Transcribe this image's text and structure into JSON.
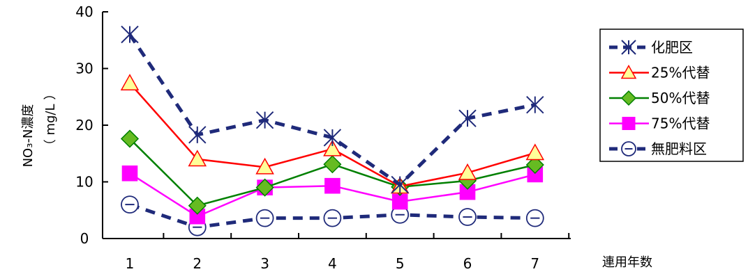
{
  "chart_data": {
    "type": "line",
    "x": [
      1,
      2,
      3,
      4,
      5,
      6,
      7
    ],
    "xlabel": "連用年数",
    "ylabel_line1": "NO₃-N濃度",
    "ylabel_line2": "（ mg/L ）",
    "ylim": [
      0,
      40
    ],
    "yticks": [
      0,
      10,
      20,
      30,
      40
    ],
    "grid": false,
    "legend_position": "right",
    "series": [
      {
        "name": "化肥区",
        "values": [
          36,
          18.3,
          20.9,
          17.8,
          9.5,
          21.2,
          23.6
        ],
        "color": "#1F2A7A",
        "line": "dashed",
        "marker": "asterisk"
      },
      {
        "name": "25%代替",
        "values": [
          27.4,
          14,
          12.6,
          15.8,
          9.2,
          11.6,
          15.1
        ],
        "color": "#FF0000",
        "line": "solid",
        "marker": "triangle",
        "marker_fill": "#FFFF99"
      },
      {
        "name": "50%代替",
        "values": [
          17.6,
          5.8,
          9,
          13.1,
          9.1,
          10.2,
          13
        ],
        "color": "#008000",
        "line": "solid",
        "marker": "diamond",
        "marker_fill": "#66BB22"
      },
      {
        "name": "75%代替",
        "values": [
          11.5,
          3.9,
          9,
          9.3,
          6.5,
          8.2,
          11.3
        ],
        "color": "#FF00FF",
        "line": "solid",
        "marker": "square",
        "marker_fill": "#FF00FF"
      },
      {
        "name": "無肥料区",
        "values": [
          6,
          2,
          3.6,
          3.6,
          4.2,
          3.8,
          3.6
        ],
        "color": "#1F2A7A",
        "line": "dashed",
        "marker": "circle-dot"
      }
    ]
  }
}
